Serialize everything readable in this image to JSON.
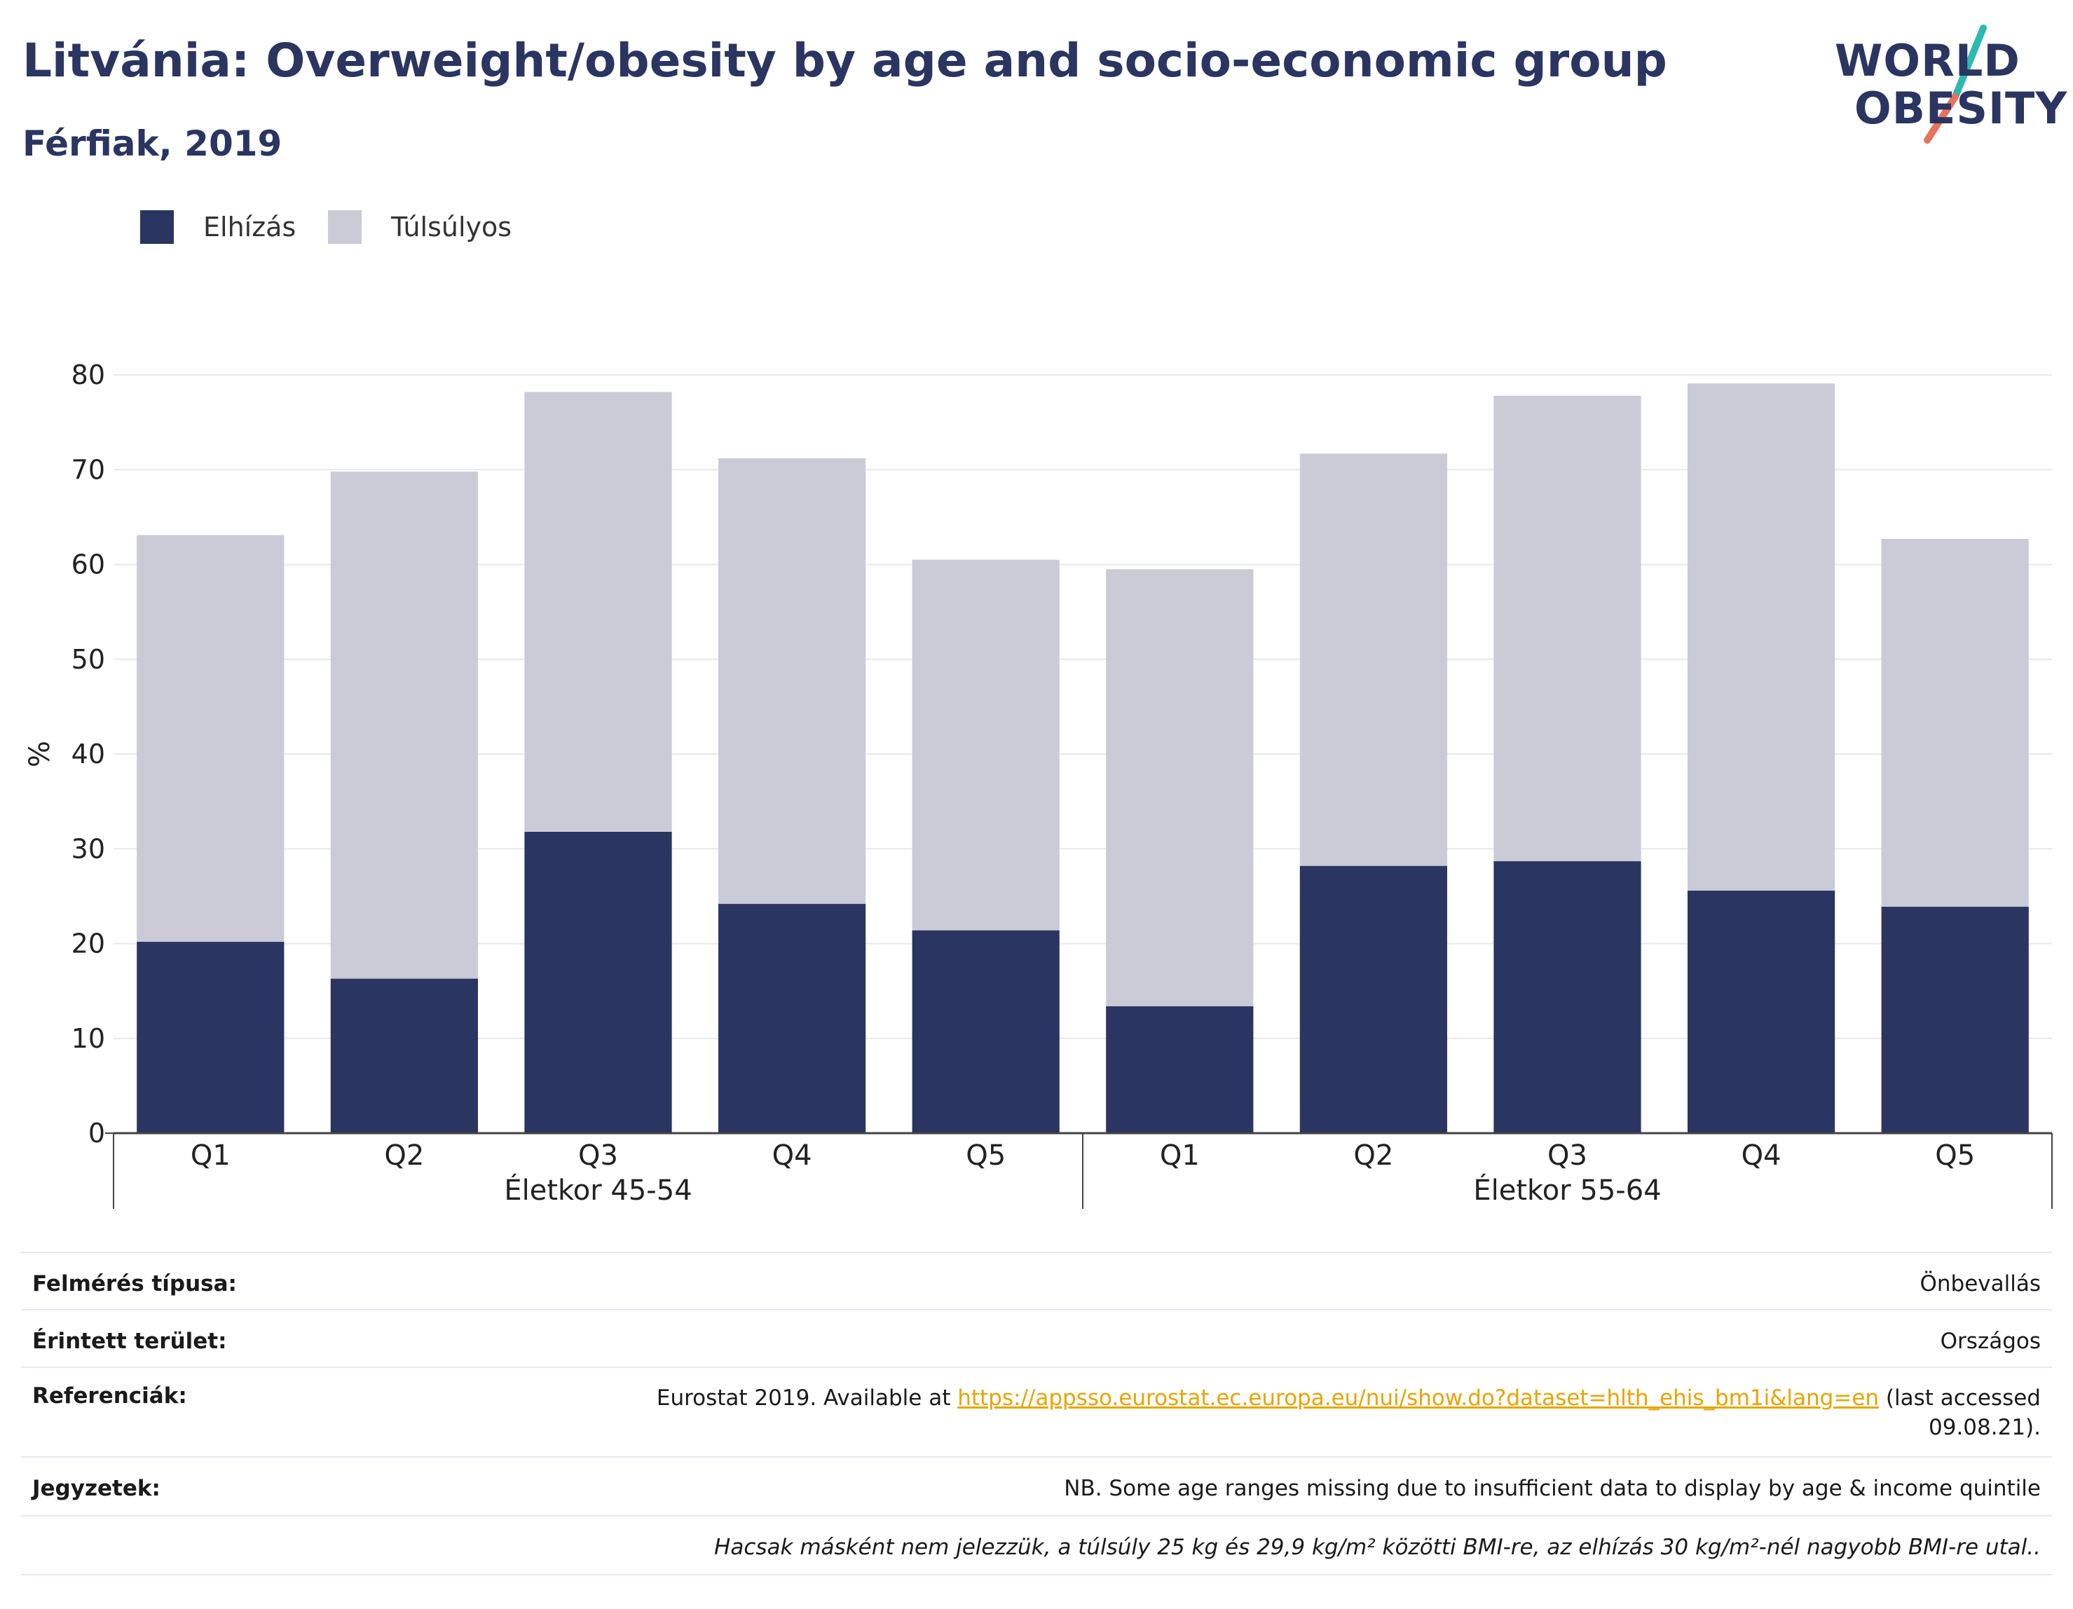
{
  "title": "Litvánia: Overweight/obesity by age and socio-economic group",
  "subtitle": "Férfiak, 2019",
  "logo": {
    "line1": "WORLD",
    "line2": "OBESITY",
    "slash_colors": [
      "#2bb9b4",
      "#e8735a"
    ]
  },
  "legend": [
    {
      "label": "Elhízás",
      "color": "#2a3561"
    },
    {
      "label": "Túlsúlyos",
      "color": "#cacbd7"
    }
  ],
  "chart_data": {
    "type": "bar",
    "stacked": true,
    "ylabel": "%",
    "ylim": [
      0,
      80
    ],
    "yticks": [
      0,
      10,
      20,
      30,
      40,
      50,
      60,
      70,
      80
    ],
    "grid": true,
    "legend_position": "top-left",
    "groups": [
      {
        "label": "Életkor 45-54",
        "categories": [
          "Q1",
          "Q2",
          "Q3",
          "Q4",
          "Q5"
        ]
      },
      {
        "label": "Életkor 55-64",
        "categories": [
          "Q1",
          "Q2",
          "Q3",
          "Q4",
          "Q5"
        ]
      }
    ],
    "series": [
      {
        "name": "Elhízás",
        "color": "#2a3561",
        "values": [
          20.2,
          16.3,
          31.8,
          24.2,
          21.4,
          13.4,
          28.2,
          28.7,
          25.6,
          23.9
        ]
      },
      {
        "name": "Túlsúlyos",
        "color": "#cacbd7",
        "values": [
          42.9,
          53.5,
          46.4,
          47.0,
          39.1,
          46.1,
          43.5,
          49.1,
          53.5,
          38.8
        ]
      }
    ]
  },
  "info": {
    "rows": [
      {
        "label": "Felmérés típusa:",
        "value": "Önbevallás"
      },
      {
        "label": "Érintett terület:",
        "value": "Országos"
      },
      {
        "label": "Referenciák:",
        "value_pre": "Eurostat 2019. Available at ",
        "link": "https://appsso.eurostat.ec.europa.eu/nui/show.do?dataset=hlth_ehis_bm1i&lang=en",
        "value_post": " (last accessed",
        "value_line2": "09.08.21)."
      },
      {
        "label": "Jegyzetek:",
        "value": "NB. Some age ranges missing due to insufficient data to display by age & income quintile"
      },
      {
        "label": "",
        "value": "Hacsak másként nem jelezzük, a túlsúly 25 kg és 29,9 kg/m² közötti BMI-re, az elhízás 30 kg/m²-nél nagyobb BMI-re utal.."
      }
    ]
  }
}
